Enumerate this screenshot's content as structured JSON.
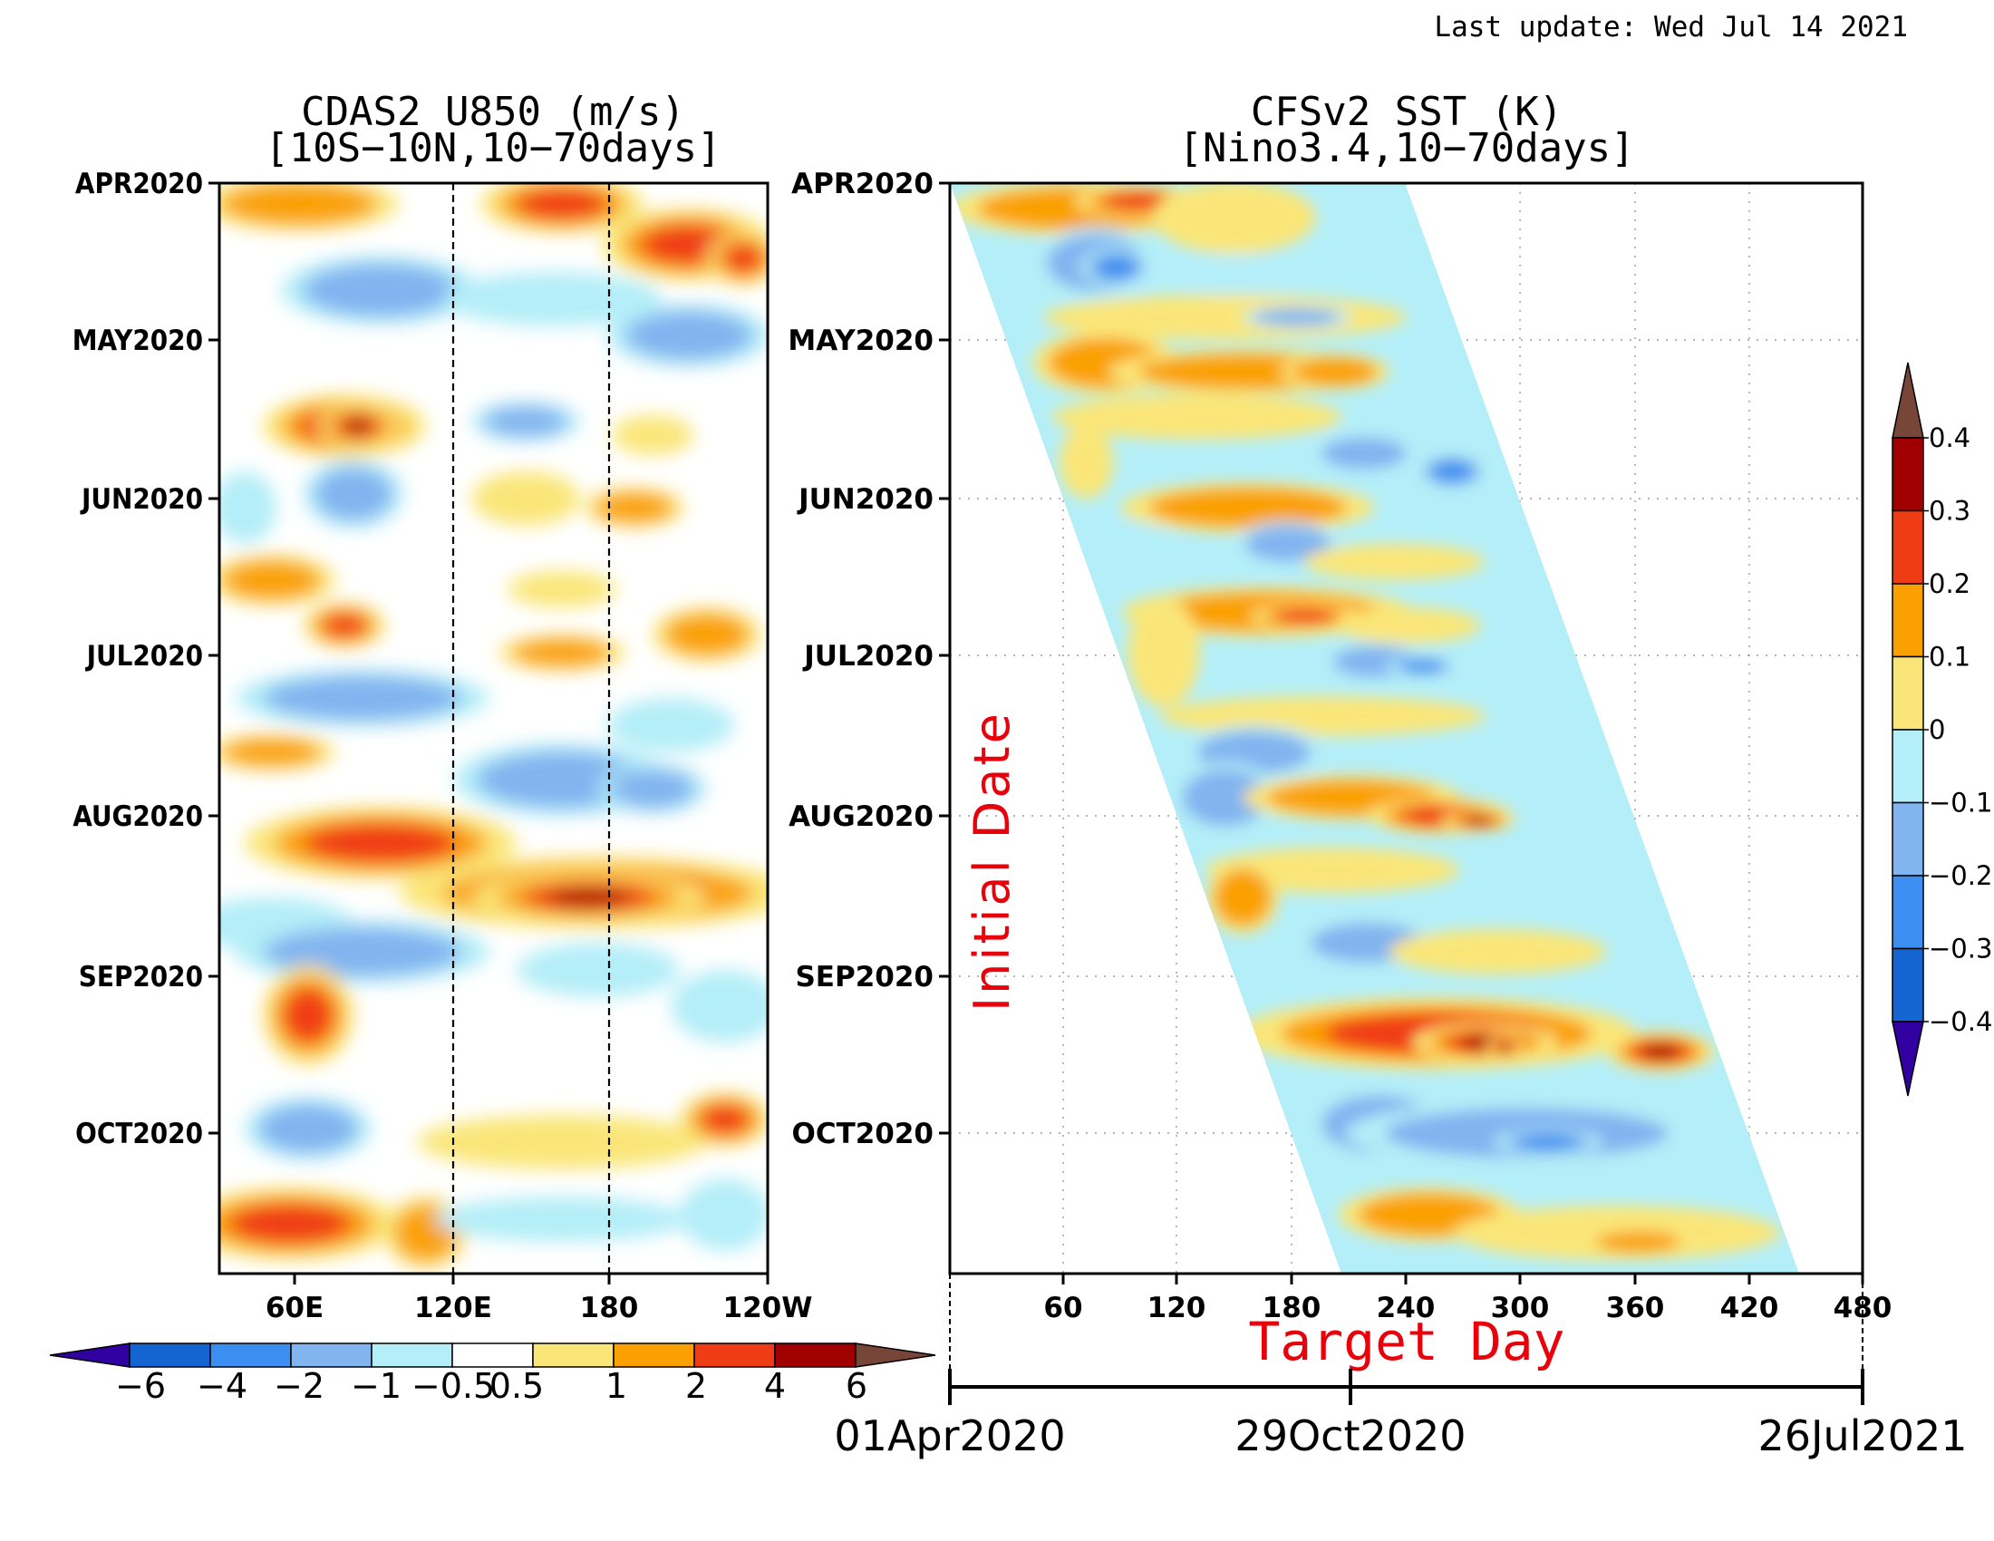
{
  "last_update": "Last update: Wed Jul 14 2021",
  "chart_data": [
    {
      "type": "heatmap",
      "title_line1": "CDAS2 U850 (m/s)",
      "title_line2": "[10S−10N,10−70days]",
      "xlabel": "",
      "ylabel": "",
      "x_ticks": [
        "60E",
        "120E",
        "180",
        "120W"
      ],
      "y_ticks": [
        "APR2020",
        "MAY2020",
        "JUN2020",
        "JUL2020",
        "AUG2020",
        "SEP2020",
        "OCT2020"
      ],
      "reference_lines": [
        "120E",
        "180"
      ],
      "colorbar": {
        "orientation": "horizontal",
        "levels": [
          "−6",
          "−4",
          "−2",
          "−1",
          "−0.5",
          "0.5",
          "1",
          "2",
          "4",
          "6"
        ],
        "colors": [
          "#1c3fc8",
          "#1464d2",
          "#3c8ff0",
          "#82b4f0",
          "#b4eef8",
          "#ffffff",
          "#fae678",
          "#faa000",
          "#f03c14",
          "#a00000",
          "#784638",
          "#3200a0"
        ]
      },
      "anomalies": [
        {
          "y": "APR2020",
          "lon": "90E-120W",
          "sign": "positive",
          "value": 3
        },
        {
          "y": "mid-APR2020",
          "lon": "60E-120W",
          "sign": "negative",
          "value": -2
        },
        {
          "y": "late-MAY2020",
          "lon": "75E-110E",
          "sign": "positive",
          "value": 5
        },
        {
          "y": "late-AUG2020",
          "lon": "130E-120W",
          "sign": "positive",
          "value": 4
        },
        {
          "y": "early-AUG2020",
          "lon": "60E-120E",
          "sign": "positive",
          "value": 4
        },
        {
          "y": "SEP2020",
          "lon": "60E-90E",
          "sign": "positive",
          "value": 3
        },
        {
          "y": "OCT2020",
          "lon": "60E-90E",
          "sign": "negative",
          "value": -3
        }
      ]
    },
    {
      "type": "heatmap",
      "title_line1": "CFSv2 SST (K)",
      "title_line2": "[Nino3.4,10−70days]",
      "xlabel": "Target Day",
      "ylabel": "Initial Date",
      "x_ticks": [
        "60",
        "120",
        "180",
        "240",
        "300",
        "360",
        "420",
        "480"
      ],
      "date_axis": [
        "01Apr2020",
        "29Oct2020",
        "26Jul2021"
      ],
      "y_ticks": [
        "APR2020",
        "MAY2020",
        "JUN2020",
        "JUL2020",
        "AUG2020",
        "SEP2020",
        "OCT2020"
      ],
      "colorbar": {
        "orientation": "vertical",
        "levels": [
          "0.4",
          "0.3",
          "0.2",
          "0.1",
          "0",
          "−0.1",
          "−0.2",
          "−0.3",
          "−0.4"
        ],
        "colors": [
          "#784638",
          "#a00000",
          "#f03c14",
          "#faa000",
          "#fae678",
          "#b4eef8",
          "#82b4f0",
          "#3c8ff0",
          "#1464d2",
          "#3200a0"
        ]
      },
      "anomalies": [
        {
          "y": "APR2020",
          "target_day": "10-160",
          "sign": "positive",
          "value": 0.15
        },
        {
          "y": "mid-APR2020",
          "target_day": "60-120",
          "sign": "negative",
          "value": -0.2
        },
        {
          "y": "mid-MAY2020",
          "target_day": "100-300",
          "sign": "positive",
          "value": 0.15
        },
        {
          "y": "JUN2020",
          "target_day": "240-320",
          "sign": "negative",
          "value": -0.15
        },
        {
          "y": "AUG2020",
          "target_day": "300-380",
          "sign": "positive",
          "value": 0.3
        },
        {
          "y": "SEP2020",
          "target_day": "190-410",
          "sign": "positive",
          "value": 0.35
        },
        {
          "y": "OCT2020",
          "target_day": "200-380",
          "sign": "negative",
          "value": -0.25
        }
      ]
    }
  ]
}
